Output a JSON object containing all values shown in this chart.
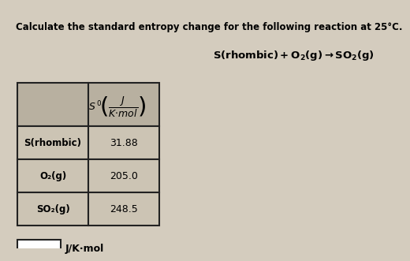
{
  "title": "Calculate the standard entropy change for the following reaction at 25°C.",
  "reaction_parts": [
    "S(rhombic) + O",
    "2",
    "(g) → SO",
    "2",
    "(g)"
  ],
  "table_col1": [
    "S(rhombic)",
    "O₂(g)",
    "SO₂(g)"
  ],
  "table_col2": [
    "31.88",
    "205.0",
    "248.5"
  ],
  "answer_label": "J/K·mol",
  "bg_color": "#d4ccbe",
  "table_header_bg": "#b8b0a0",
  "table_cell_bg": "#ccc4b4",
  "border_color": "#222222",
  "white": "#ffffff"
}
